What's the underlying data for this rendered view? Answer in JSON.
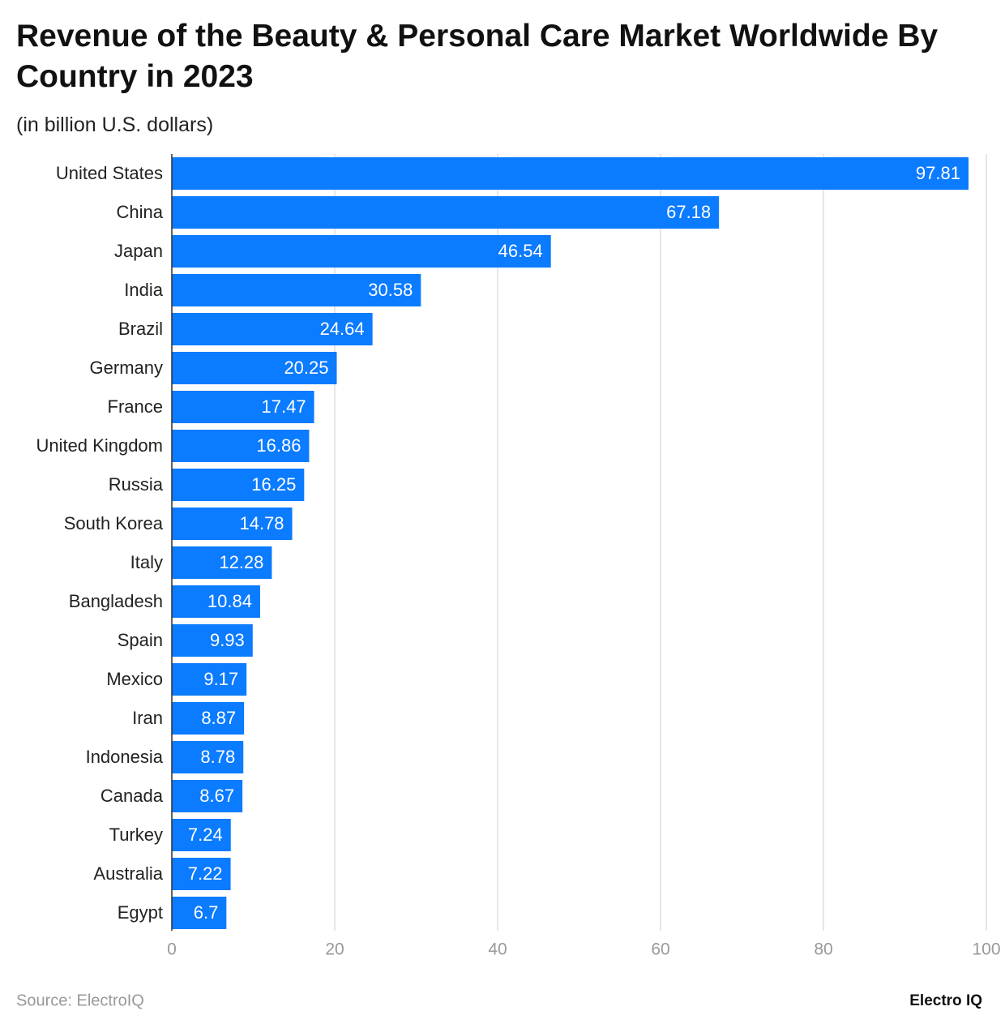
{
  "chart_data": {
    "type": "bar",
    "orientation": "horizontal",
    "title": "Revenue of the Beauty & Personal Care Market Worldwide By Country in 2023",
    "subtitle": "(in billion U.S. dollars)",
    "categories": [
      "United States",
      "China",
      "Japan",
      "India",
      "Brazil",
      "Germany",
      "France",
      "United Kingdom",
      "Russia",
      "South Korea",
      "Italy",
      "Bangladesh",
      "Spain",
      "Mexico",
      "Iran",
      "Indonesia",
      "Canada",
      "Turkey",
      "Australia",
      "Egypt"
    ],
    "values": [
      97.81,
      67.18,
      46.54,
      30.58,
      24.64,
      20.25,
      17.47,
      16.86,
      16.25,
      14.78,
      12.28,
      10.84,
      9.93,
      9.17,
      8.87,
      8.78,
      8.67,
      7.24,
      7.22,
      6.7
    ],
    "color": "#0b7bff",
    "xlim": [
      0,
      100
    ],
    "xticks": [
      0,
      20,
      40,
      60,
      80,
      100
    ],
    "grid": true,
    "source": "Source: ElectroIQ",
    "brand": "Electro IQ"
  }
}
